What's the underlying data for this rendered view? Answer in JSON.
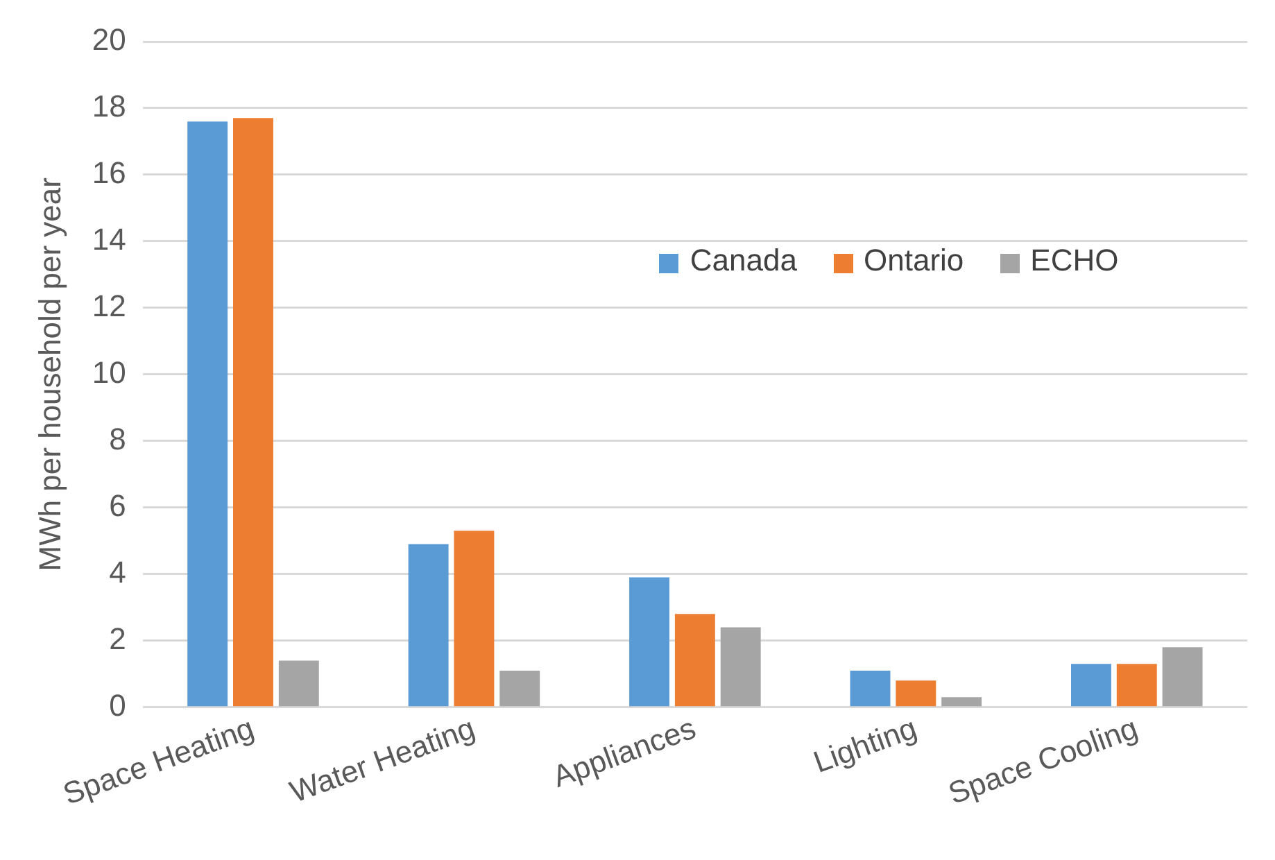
{
  "chart_data": {
    "type": "bar",
    "ylabel": "MWh per household per year",
    "categories": [
      "Space Heating",
      "Water Heating",
      "Appliances",
      "Lighting",
      "Space Cooling"
    ],
    "series": [
      {
        "name": "Canada",
        "color": "#5b9bd5",
        "values": [
          17.6,
          4.9,
          3.9,
          1.1,
          1.3
        ]
      },
      {
        "name": "Ontario",
        "color": "#ed7d31",
        "values": [
          17.7,
          5.3,
          2.8,
          0.8,
          1.3
        ]
      },
      {
        "name": "ECHO",
        "color": "#a5a5a5",
        "values": [
          1.4,
          1.1,
          2.4,
          0.3,
          1.8
        ]
      }
    ],
    "ylim": [
      0,
      20
    ],
    "yticks": [
      0,
      2,
      4,
      6,
      8,
      10,
      12,
      14,
      16,
      18,
      20
    ],
    "grid": "y",
    "legend": "top"
  }
}
